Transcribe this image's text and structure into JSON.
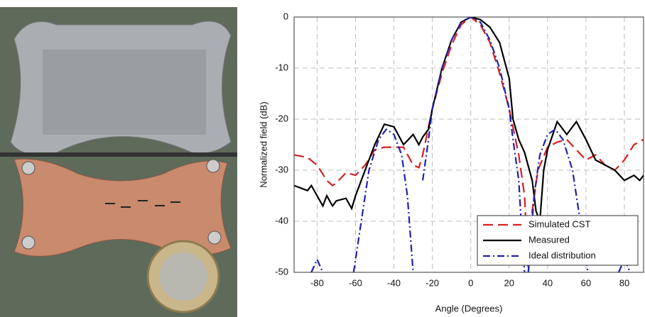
{
  "chart_data": {
    "type": "line",
    "xlabel": "Angle (Degrees)",
    "ylabel": "Normalized field (dB)",
    "xlim": [
      -92,
      90
    ],
    "ylim": [
      -50,
      0
    ],
    "xticks": [
      -80,
      -60,
      -40,
      -20,
      0,
      20,
      40,
      60,
      80
    ],
    "yticks": [
      -50,
      -40,
      -30,
      -20,
      -10,
      0
    ],
    "grid": true,
    "legend": "lower right",
    "series": [
      {
        "name": "Simulated CST",
        "color": "#d62020",
        "dash": "dashed",
        "x": [
          -92,
          -85,
          -80,
          -75,
          -72,
          -70,
          -65,
          -60,
          -55,
          -50,
          -45,
          -40,
          -35,
          -30,
          -27,
          -25,
          -20,
          -15,
          -10,
          -5,
          0,
          5,
          10,
          15,
          20,
          25,
          28,
          30,
          32,
          35,
          40,
          45,
          50,
          55,
          60,
          65,
          70,
          75,
          80,
          85,
          90
        ],
        "values": [
          -27,
          -27.5,
          -29,
          -32,
          -33,
          -32.5,
          -30.5,
          -31,
          -29,
          -26,
          -25.5,
          -25.5,
          -25.5,
          -29,
          -29.5,
          -27,
          -18,
          -11,
          -5.5,
          -1.5,
          0,
          -1.5,
          -5,
          -11,
          -18,
          -27,
          -35,
          -50,
          -38,
          -30,
          -25.5,
          -24.5,
          -24,
          -26,
          -28,
          -27,
          -29,
          -30,
          -28,
          -25,
          -24
        ]
      },
      {
        "name": "Measured",
        "color": "#000000",
        "dash": "solid",
        "x": [
          -92,
          -85,
          -83,
          -80,
          -77,
          -75,
          -72,
          -70,
          -65,
          -62,
          -60,
          -55,
          -50,
          -45,
          -40,
          -35,
          -30,
          -27,
          -25,
          -22,
          -20,
          -15,
          -10,
          -5,
          0,
          5,
          10,
          15,
          20,
          22,
          25,
          28,
          32,
          34,
          36,
          38,
          40,
          45,
          50,
          55,
          60,
          65,
          70,
          75,
          80,
          85,
          88,
          90
        ],
        "values": [
          -33,
          -34,
          -33,
          -35,
          -37,
          -35,
          -37,
          -36,
          -35.5,
          -37.5,
          -35,
          -30,
          -25,
          -21,
          -21.5,
          -25,
          -23,
          -25,
          -23.5,
          -22,
          -18,
          -10,
          -4.5,
          -1,
          0,
          -0.5,
          -2,
          -5,
          -12,
          -20,
          -24,
          -26.5,
          -32,
          -38,
          -40,
          -30,
          -26,
          -20.5,
          -23,
          -20.5,
          -24,
          -28,
          -29,
          -30,
          -32,
          -31,
          -32,
          -31
        ]
      },
      {
        "name": "Ideal distribution",
        "color": "#2020b0",
        "dash": "dashdot",
        "x": [
          -83,
          -80,
          -77,
          -70,
          -61,
          -57,
          -53,
          -48,
          -44,
          -40,
          -36,
          -33,
          -31,
          -30,
          -27,
          -25,
          -22,
          -20,
          -15,
          -10,
          -5,
          0,
          5,
          10,
          15,
          20,
          22,
          25,
          27,
          28,
          29,
          30,
          31,
          33,
          36,
          40,
          44,
          48,
          53,
          57,
          61,
          70,
          77,
          80,
          83
        ],
        "values": [
          -50,
          -47.5,
          -50,
          null,
          -50,
          -40,
          -30,
          -24,
          -22,
          -23,
          -27,
          -35,
          -45,
          -50,
          null,
          -32,
          -24,
          -18,
          -10,
          -4.5,
          -1,
          0,
          -1,
          -4.5,
          -10,
          -18,
          -24,
          -32,
          -45,
          -50,
          null,
          -50,
          -45,
          -35,
          -27,
          -23,
          -22,
          -24,
          -30,
          -40,
          -50,
          null,
          -50,
          -47.5,
          -50
        ]
      }
    ]
  }
}
